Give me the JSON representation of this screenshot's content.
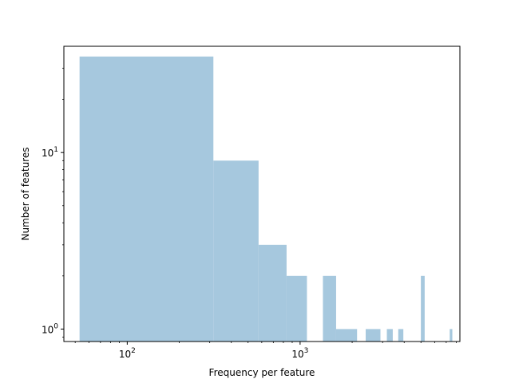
{
  "chart_data": {
    "type": "bar",
    "subtype": "histogram",
    "xscale": "log",
    "yscale": "log",
    "xlabel": "Frequency per feature",
    "ylabel": "Number of features",
    "xlim": [
      43,
      8400
    ],
    "ylim": [
      0.85,
      40
    ],
    "bar_color": "#a6c8de",
    "grid": false,
    "xticks": [
      {
        "value": 100,
        "label": "10",
        "exp": "2"
      },
      {
        "value": 1000,
        "label": "10",
        "exp": "3"
      }
    ],
    "yticks": [
      {
        "value": 1,
        "label": "10",
        "exp": "0"
      },
      {
        "value": 10,
        "label": "10",
        "exp": "1"
      }
    ],
    "bins": [
      {
        "x0": 53,
        "x1": 315,
        "count": 35
      },
      {
        "x0": 315,
        "x1": 575,
        "count": 9
      },
      {
        "x0": 575,
        "x1": 835,
        "count": 3
      },
      {
        "x0": 835,
        "x1": 1095,
        "count": 2
      },
      {
        "x0": 1355,
        "x1": 1615,
        "count": 2
      },
      {
        "x0": 1615,
        "x1": 2135,
        "count": 1
      },
      {
        "x0": 2395,
        "x1": 2915,
        "count": 1
      },
      {
        "x0": 3175,
        "x1": 3435,
        "count": 1
      },
      {
        "x0": 3695,
        "x1": 3955,
        "count": 1
      },
      {
        "x0": 4995,
        "x1": 5255,
        "count": 2
      },
      {
        "x0": 7335,
        "x1": 7595,
        "count": 1
      }
    ]
  }
}
